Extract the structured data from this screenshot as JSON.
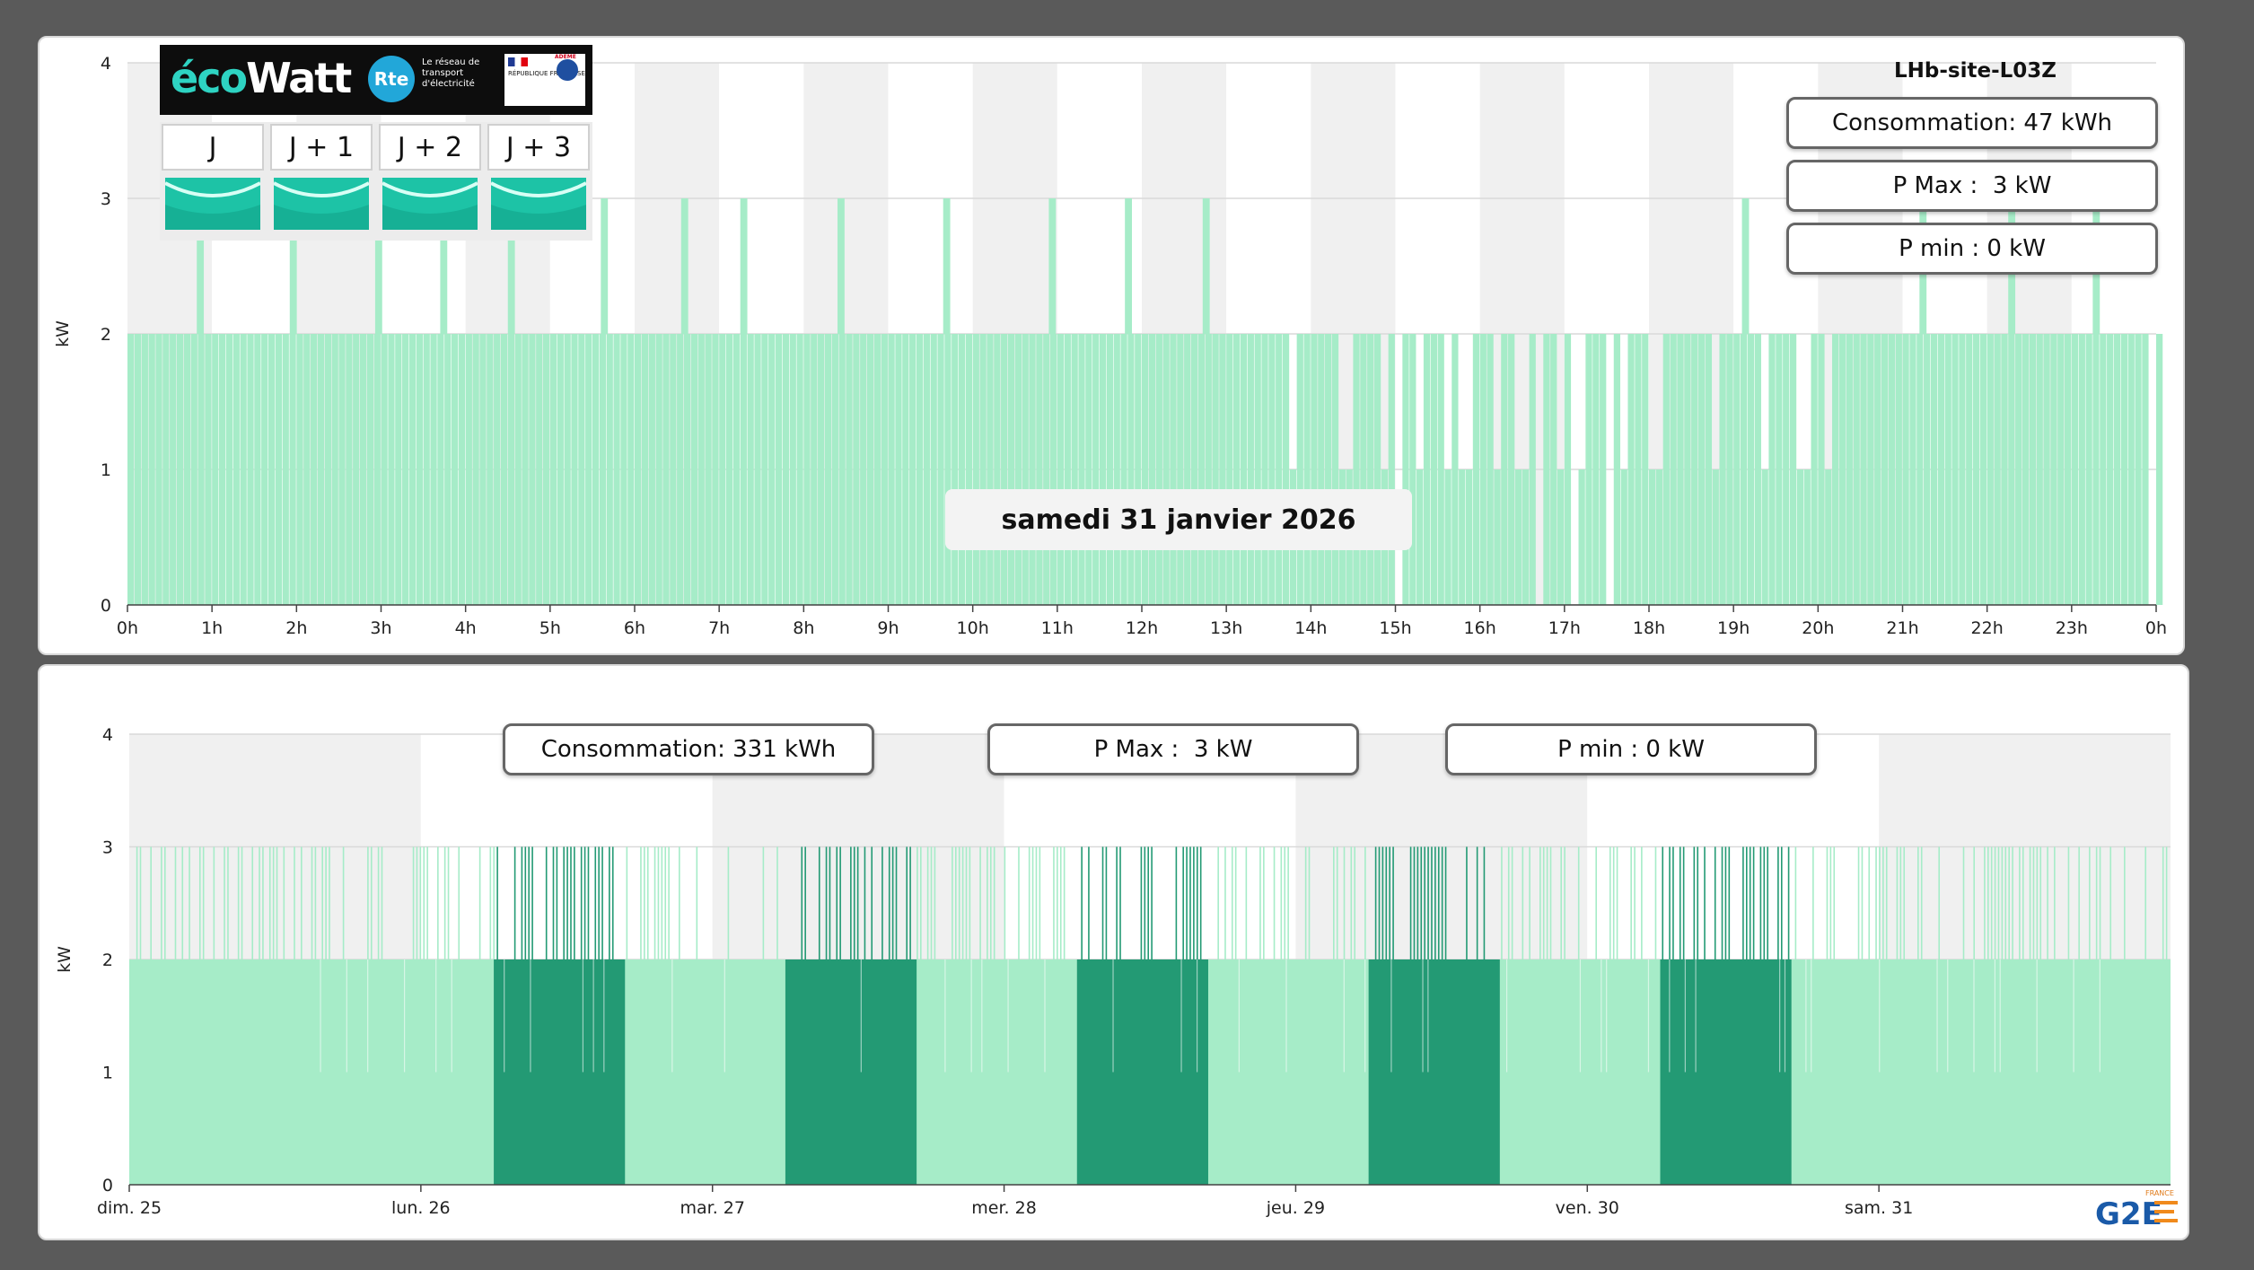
{
  "day_panel": {
    "site_name": "LHb-site-L03Z",
    "consumption_label": "Consommation: 47 kWh",
    "pmax_label": "P Max :  3 kW",
    "pmin_label": "P min : 0 kW",
    "date_label": "samedi 31 janvier 2026",
    "ecowatt": {
      "brand": "écoWatt",
      "rte_logo": "Rte",
      "rte_text": "Le réseau de transport d'électricité",
      "republique_text": "RÉPUBLIQUE FRANÇAISE",
      "ademe_text": "ADEME",
      "days": [
        {
          "label": "J",
          "state": "green"
        },
        {
          "label": "J + 1",
          "state": "green"
        },
        {
          "label": "J + 2",
          "state": "green"
        },
        {
          "label": "J + 3",
          "state": "green"
        }
      ],
      "state_color": "#1dc3a6"
    }
  },
  "week_panel": {
    "consumption_label": "Consommation: 331 kWh",
    "pmax_label": "P Max :  3 kW",
    "pmin_label": "P min : 0 kW",
    "logo_text": "G2E",
    "logo_subtext": "FRANCE"
  },
  "colors": {
    "bar_light": "#a6ecc8",
    "bar_dark": "#239a74",
    "band_gray": "#f0f0f0",
    "band_white": "#ffffff",
    "grid": "#d9d9d9"
  },
  "chart_data": [
    {
      "type": "bar",
      "ylabel": "kW",
      "ylim": [
        0,
        4
      ],
      "yticks": [
        0,
        1,
        2,
        3,
        4
      ],
      "x_tick_labels": [
        "0h",
        "1h",
        "2h",
        "3h",
        "4h",
        "5h",
        "6h",
        "7h",
        "8h",
        "9h",
        "10h",
        "11h",
        "12h",
        "13h",
        "14h",
        "15h",
        "16h",
        "17h",
        "18h",
        "19h",
        "20h",
        "21h",
        "22h",
        "23h",
        "0h"
      ],
      "x_unit": "hour",
      "xlim": [
        0,
        24
      ],
      "base_value": 2,
      "step_minutes": 5,
      "peak_value": 3,
      "peak_hours": [
        0.82,
        1.92,
        2.93,
        3.7,
        4.5,
        5.6,
        6.55,
        7.25,
        8.4,
        9.65,
        10.9,
        11.8,
        12.72,
        19.1,
        21.2,
        22.25,
        23.25
      ],
      "drop_to_1_ranges": [
        [
          13.7,
          13.8
        ],
        [
          14.3,
          14.5
        ],
        [
          14.8,
          14.9
        ],
        [
          15.25,
          15.3
        ],
        [
          15.55,
          15.6
        ],
        [
          15.75,
          15.85
        ],
        [
          16.1,
          16.2
        ],
        [
          16.4,
          16.55
        ],
        [
          16.85,
          16.95
        ],
        [
          17.15,
          17.25
        ],
        [
          17.6,
          17.7
        ],
        [
          18.0,
          18.15
        ],
        [
          18.7,
          18.8
        ],
        [
          19.25,
          19.4
        ],
        [
          19.7,
          19.85
        ],
        [
          20.0,
          20.1
        ]
      ],
      "drop_to_0_ranges": [
        [
          15.0,
          15.05
        ],
        [
          16.65,
          16.7
        ],
        [
          17.05,
          17.1
        ],
        [
          17.5,
          17.55
        ],
        [
          23.85,
          23.95
        ]
      ]
    },
    {
      "type": "bar",
      "ylabel": "kW",
      "ylim": [
        0,
        4
      ],
      "yticks": [
        0,
        1,
        2,
        3,
        4
      ],
      "x_tick_labels": [
        "dim. 25",
        "lun. 26",
        "mar. 27",
        "mer. 28",
        "jeu. 29",
        "ven. 30",
        "sam. 31"
      ],
      "x_unit": "day",
      "xlim": [
        0,
        7
      ],
      "base_value": 2,
      "dark_periods": [
        [
          1.25,
          1.7
        ],
        [
          2.25,
          2.7
        ],
        [
          3.25,
          3.7
        ],
        [
          4.25,
          4.7
        ],
        [
          5.25,
          5.7
        ]
      ],
      "dark_partial_1kW": [
        [
          3.25,
          3.7
        ],
        [
          5.55,
          5.7
        ]
      ],
      "peak_density": "frequent 3 kW spikes throughout the week"
    }
  ]
}
